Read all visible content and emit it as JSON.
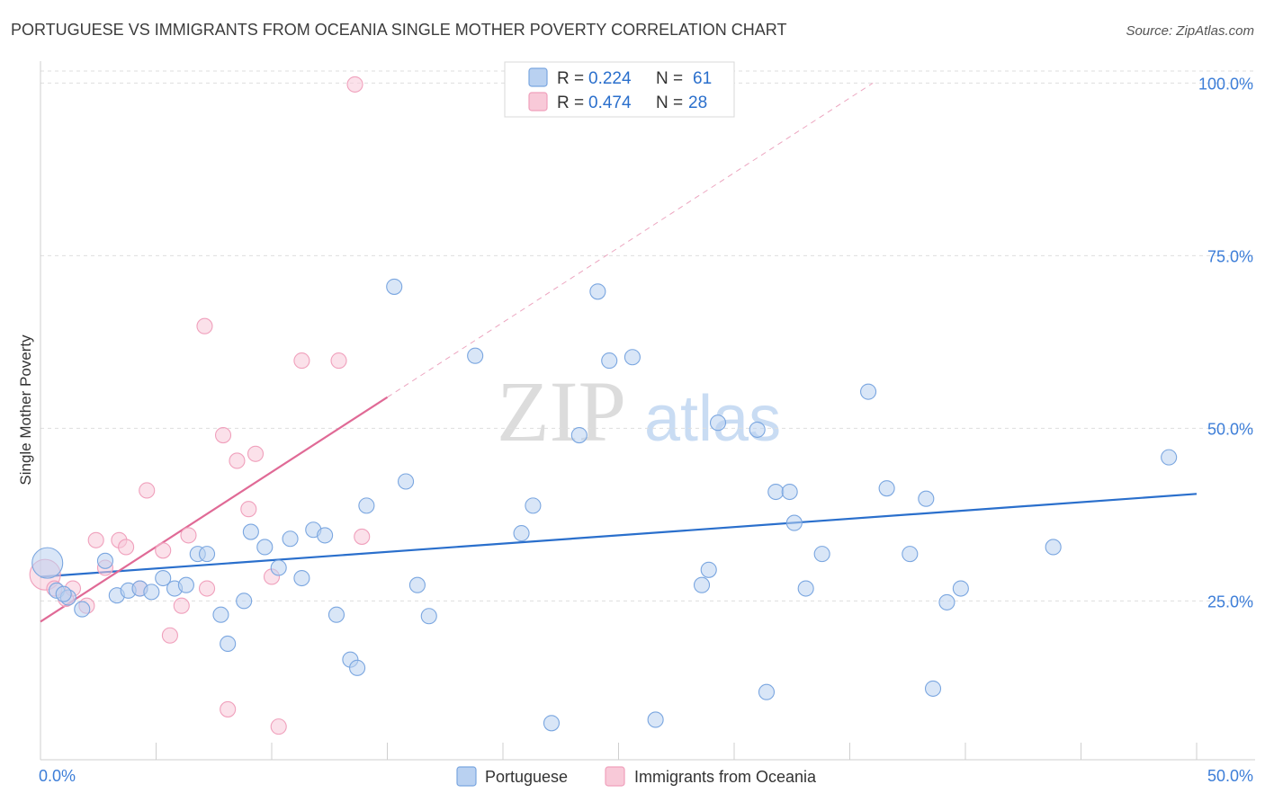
{
  "chart_data": {
    "type": "scatter",
    "title": "PORTUGUESE VS IMMIGRANTS FROM OCEANIA SINGLE MOTHER POVERTY CORRELATION CHART",
    "source": "Source: ZipAtlas.com",
    "xlabel": "",
    "ylabel": "Single Mother Poverty",
    "xlim": [
      0,
      50
    ],
    "ylim": [
      2,
      102
    ],
    "x_tick_labels": [
      "0.0%",
      "50.0%"
    ],
    "y_ticks": [
      25,
      50,
      75,
      100
    ],
    "y_tick_labels": [
      "25.0%",
      "50.0%",
      "75.0%",
      "100.0%"
    ],
    "watermark": {
      "zip": "ZIP",
      "atlas": "atlas"
    },
    "legend": [
      {
        "r_label": "R =",
        "r_value": "0.224",
        "n_label": "N =",
        "n_value": "61"
      },
      {
        "r_label": "R =",
        "r_value": "0.474",
        "n_label": "N =",
        "n_value": "28"
      }
    ],
    "series": [
      {
        "name": "Portuguese",
        "color": "#7aa6e0",
        "fill": "#b9d1f1",
        "line_color": "#2a6fcc",
        "trend": {
          "x0": 0,
          "y0": 28.5,
          "x1": 50,
          "y1": 40.5,
          "dashed_to": 50
        },
        "points": [
          [
            0.3,
            30.5
          ],
          [
            0.7,
            26.5
          ],
          [
            1.2,
            25.5
          ],
          [
            1.8,
            23.8
          ],
          [
            2.8,
            30.8
          ],
          [
            3.3,
            25.8
          ],
          [
            3.8,
            26.5
          ],
          [
            4.3,
            26.8
          ],
          [
            4.8,
            26.3
          ],
          [
            5.3,
            28.3
          ],
          [
            5.8,
            26.8
          ],
          [
            6.3,
            27.3
          ],
          [
            6.8,
            31.8
          ],
          [
            7.2,
            31.8
          ],
          [
            7.8,
            23.0
          ],
          [
            8.1,
            18.8
          ],
          [
            8.8,
            25.0
          ],
          [
            9.1,
            35.0
          ],
          [
            9.7,
            32.8
          ],
          [
            10.3,
            29.8
          ],
          [
            10.8,
            34.0
          ],
          [
            11.3,
            28.3
          ],
          [
            11.8,
            35.3
          ],
          [
            12.3,
            34.5
          ],
          [
            12.8,
            23.0
          ],
          [
            13.4,
            16.5
          ],
          [
            13.7,
            15.3
          ],
          [
            14.1,
            38.8
          ],
          [
            15.3,
            70.5
          ],
          [
            15.8,
            42.3
          ],
          [
            16.3,
            27.3
          ],
          [
            16.8,
            22.8
          ],
          [
            18.8,
            60.5
          ],
          [
            21.3,
            38.8
          ],
          [
            20.8,
            34.8
          ],
          [
            22.1,
            7.3
          ],
          [
            23.3,
            49.0
          ],
          [
            24.1,
            69.8
          ],
          [
            24.6,
            59.8
          ],
          [
            25.6,
            60.3
          ],
          [
            26.6,
            7.8
          ],
          [
            28.6,
            27.3
          ],
          [
            28.9,
            29.5
          ],
          [
            29.3,
            50.8
          ],
          [
            31.0,
            49.8
          ],
          [
            31.4,
            11.8
          ],
          [
            31.8,
            40.8
          ],
          [
            32.4,
            40.8
          ],
          [
            32.6,
            36.3
          ],
          [
            33.1,
            26.8
          ],
          [
            33.8,
            31.8
          ],
          [
            35.8,
            55.3
          ],
          [
            36.6,
            41.3
          ],
          [
            37.6,
            31.8
          ],
          [
            38.3,
            39.8
          ],
          [
            38.6,
            12.3
          ],
          [
            39.2,
            24.8
          ],
          [
            39.8,
            26.8
          ],
          [
            43.8,
            32.8
          ],
          [
            48.8,
            45.8
          ],
          [
            1.0,
            26.0
          ]
        ]
      },
      {
        "name": "Immigrants from Oceania",
        "color": "#f0a0bc",
        "fill": "#f8c9d8",
        "line_color": "#e06a96",
        "trend": {
          "x0": 0,
          "y0": 22.0,
          "x1": 15,
          "y1": 54.5,
          "dashed_to": 36
        },
        "points": [
          [
            0.2,
            28.8
          ],
          [
            0.6,
            26.8
          ],
          [
            1.1,
            25.3
          ],
          [
            1.4,
            26.8
          ],
          [
            2.0,
            24.3
          ],
          [
            2.4,
            33.8
          ],
          [
            2.8,
            29.8
          ],
          [
            3.4,
            33.8
          ],
          [
            3.7,
            32.8
          ],
          [
            4.3,
            26.8
          ],
          [
            4.6,
            41.0
          ],
          [
            5.3,
            32.3
          ],
          [
            5.6,
            20.0
          ],
          [
            6.1,
            24.3
          ],
          [
            6.4,
            34.5
          ],
          [
            7.1,
            64.8
          ],
          [
            7.2,
            26.8
          ],
          [
            7.9,
            49.0
          ],
          [
            8.1,
            9.3
          ],
          [
            8.5,
            45.3
          ],
          [
            9.0,
            38.3
          ],
          [
            9.3,
            46.3
          ],
          [
            10.0,
            28.5
          ],
          [
            10.3,
            6.8
          ],
          [
            11.3,
            59.8
          ],
          [
            12.9,
            59.8
          ],
          [
            13.9,
            34.3
          ],
          [
            13.6,
            99.8
          ]
        ]
      }
    ]
  }
}
